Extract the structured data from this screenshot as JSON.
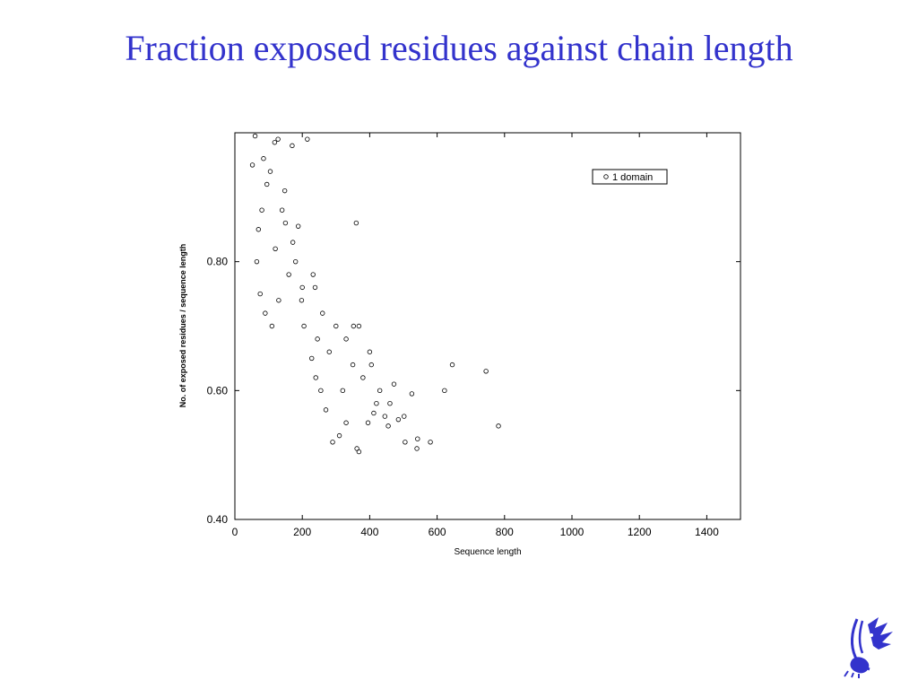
{
  "slide": {
    "title": "Fraction exposed residues against chain length",
    "accent_color": "#3333cc",
    "logo_icon": "university-griffin-logo"
  },
  "chart_data": {
    "type": "scatter",
    "title": "",
    "xlabel": "Sequence length",
    "ylabel": "No. of exposed residues / sequence length",
    "xlim": [
      0,
      1500
    ],
    "ylim": [
      0.4,
      1.0
    ],
    "x_ticks": [
      0,
      200,
      400,
      600,
      800,
      1000,
      1200,
      1400
    ],
    "y_ticks": [
      0.4,
      0.6,
      0.8
    ],
    "y_tick_labels": [
      "0.40",
      "0.60",
      "0.80"
    ],
    "grid": false,
    "legend": {
      "position": "top-right",
      "entries": [
        "1 domain"
      ]
    },
    "series": [
      {
        "name": "1 domain",
        "marker": "hollow-circle",
        "points": [
          [
            215,
            0.99
          ],
          [
            360,
            0.86
          ],
          [
            645,
            0.64
          ],
          [
            745,
            0.63
          ],
          [
            782,
            0.545
          ],
          [
            622,
            0.6
          ],
          [
            580,
            0.52
          ],
          [
            542,
            0.525
          ],
          [
            540,
            0.51
          ],
          [
            525,
            0.595
          ],
          [
            505,
            0.52
          ],
          [
            502,
            0.56
          ],
          [
            472,
            0.61
          ],
          [
            455,
            0.545
          ],
          [
            445,
            0.56
          ],
          [
            420,
            0.58
          ],
          [
            412,
            0.565
          ],
          [
            395,
            0.55
          ],
          [
            368,
            0.505
          ],
          [
            362,
            0.51
          ],
          [
            368,
            0.7
          ],
          [
            352,
            0.7
          ],
          [
            400,
            0.66
          ],
          [
            405,
            0.64
          ],
          [
            310,
            0.53
          ],
          [
            290,
            0.52
          ],
          [
            330,
            0.55
          ],
          [
            270,
            0.57
          ],
          [
            255,
            0.6
          ],
          [
            240,
            0.62
          ],
          [
            228,
            0.65
          ],
          [
            245,
            0.68
          ],
          [
            205,
            0.7
          ],
          [
            198,
            0.74
          ],
          [
            232,
            0.78
          ],
          [
            238,
            0.76
          ],
          [
            188,
            0.855
          ],
          [
            150,
            0.86
          ],
          [
            172,
            0.83
          ],
          [
            140,
            0.88
          ],
          [
            148,
            0.91
          ],
          [
            128,
            0.99
          ],
          [
            118,
            0.985
          ],
          [
            60,
            0.995
          ],
          [
            52,
            0.95
          ],
          [
            170,
            0.98
          ],
          [
            300,
            0.7
          ],
          [
            330,
            0.68
          ],
          [
            280,
            0.66
          ],
          [
            350,
            0.64
          ],
          [
            380,
            0.62
          ],
          [
            430,
            0.6
          ],
          [
            460,
            0.58
          ],
          [
            485,
            0.555
          ],
          [
            320,
            0.6
          ],
          [
            260,
            0.72
          ],
          [
            200,
            0.76
          ],
          [
            180,
            0.8
          ],
          [
            160,
            0.78
          ],
          [
            130,
            0.74
          ],
          [
            110,
            0.7
          ],
          [
            90,
            0.72
          ],
          [
            75,
            0.75
          ],
          [
            65,
            0.8
          ],
          [
            70,
            0.85
          ],
          [
            80,
            0.88
          ],
          [
            95,
            0.92
          ],
          [
            85,
            0.96
          ],
          [
            105,
            0.94
          ],
          [
            120,
            0.82
          ]
        ]
      }
    ]
  }
}
